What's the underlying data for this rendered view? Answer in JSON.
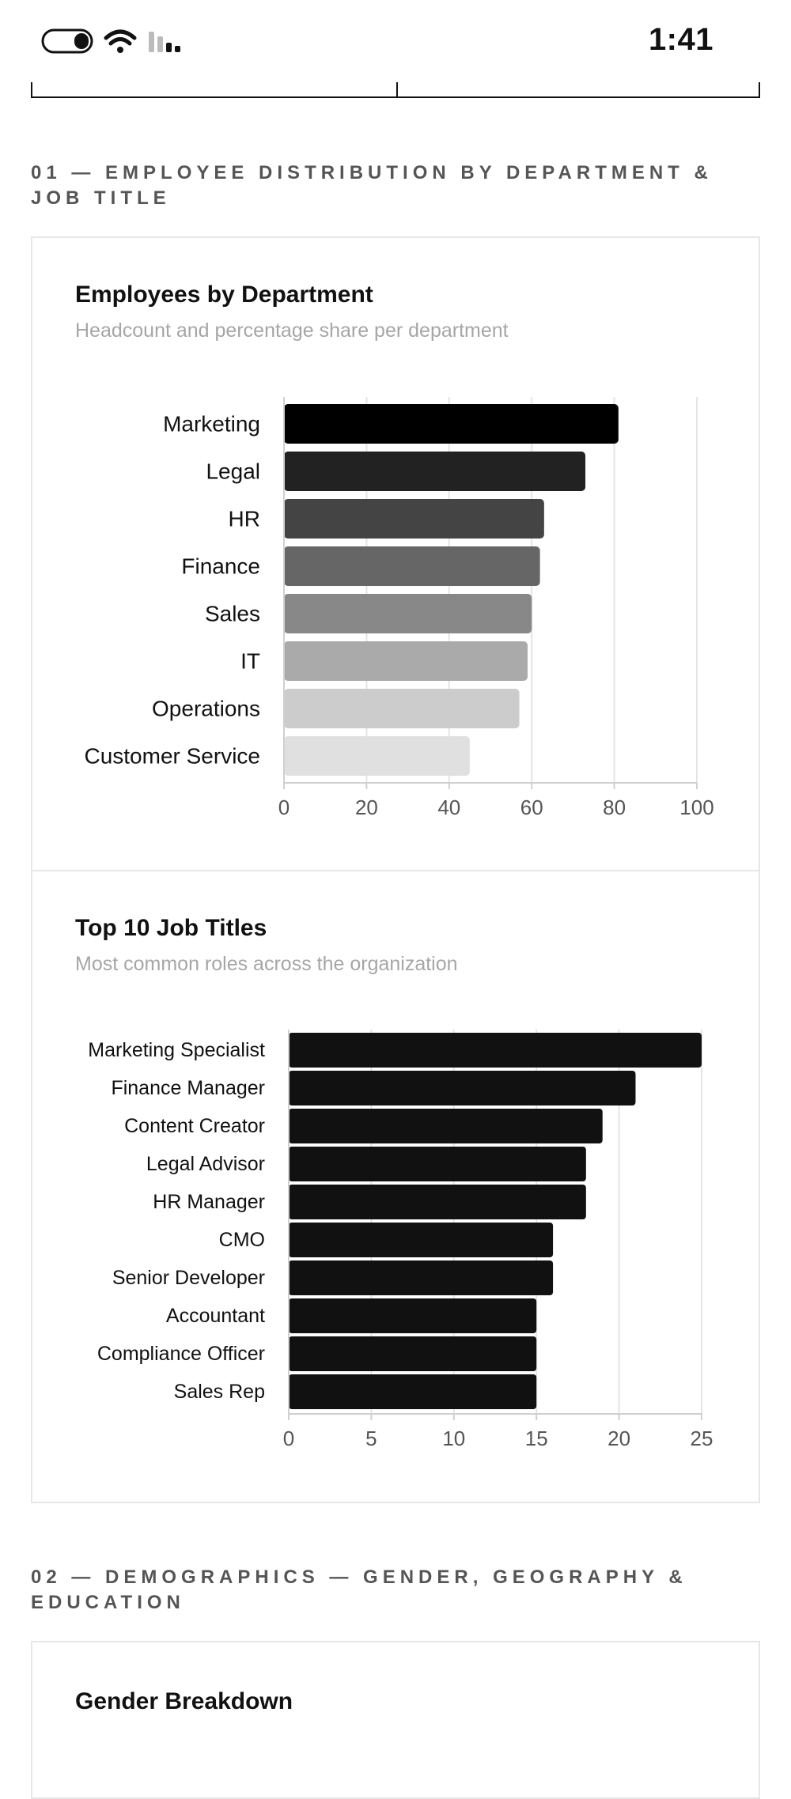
{
  "status_bar": {
    "time": "1:41"
  },
  "sections": [
    {
      "title": "01 — EMPLOYEE DISTRIBUTION BY DEPARTMENT & JOB TITLE"
    },
    {
      "title": "02 — DEMOGRAPHICS — GENDER, GEOGRAPHY & EDUCATION"
    }
  ],
  "cards": {
    "departments": {
      "title": "Employees by Department",
      "subtitle": "Headcount and percentage share per department"
    },
    "job_titles": {
      "title": "Top 10 Job Titles",
      "subtitle": "Most common roles across the organization"
    },
    "gender": {
      "title": "Gender Breakdown"
    }
  },
  "chart_data": [
    {
      "type": "bar",
      "orientation": "horizontal",
      "title": "Employees by Department",
      "subtitle": "Headcount and percentage share per department",
      "categories": [
        "Marketing",
        "Legal",
        "HR",
        "Finance",
        "Sales",
        "IT",
        "Operations",
        "Customer Service"
      ],
      "values": [
        81,
        73,
        63,
        62,
        60,
        59,
        57,
        45
      ],
      "colors": [
        "#000000",
        "#222222",
        "#444444",
        "#666666",
        "#888888",
        "#aaaaaa",
        "#cccccc",
        "#e0e0e0"
      ],
      "xlim": [
        0,
        100
      ],
      "xticks": [
        0,
        20,
        40,
        60,
        80,
        100
      ],
      "grid": true
    },
    {
      "type": "bar",
      "orientation": "horizontal",
      "title": "Top 10 Job Titles",
      "subtitle": "Most common roles across the organization",
      "categories": [
        "Marketing Specialist",
        "Finance Manager",
        "Content Creator",
        "Legal Advisor",
        "HR Manager",
        "CMO",
        "Senior Developer",
        "Accountant",
        "Compliance Officer",
        "Sales Rep"
      ],
      "values": [
        25,
        21,
        19,
        18,
        18,
        16,
        16,
        15,
        15,
        15
      ],
      "colors": [
        "#111111"
      ],
      "xlim": [
        0,
        25
      ],
      "xticks": [
        0,
        5,
        10,
        15,
        20,
        25
      ],
      "grid": true
    }
  ]
}
